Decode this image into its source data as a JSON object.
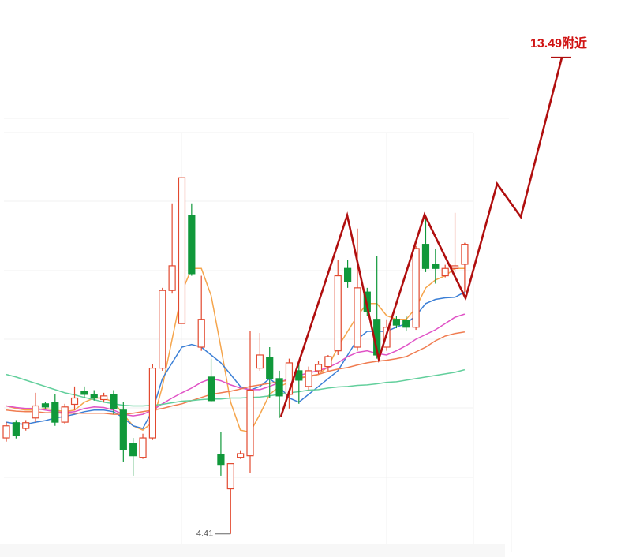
{
  "chart_data": {
    "type": "candlestick",
    "open": [
      6.24,
      6.53,
      6.42,
      6.62,
      6.89,
      6.92,
      6.54,
      6.88,
      7.13,
      7.07,
      6.97,
      7.07,
      6.77,
      6.14,
      5.87,
      6.24,
      7.57,
      9.05,
      8.42,
      10.48,
      7.97,
      7.4,
      5.93,
      5.27,
      5.87,
      5.9,
      7.57,
      7.78,
      7.37,
      7.07,
      7.52,
      7.22,
      7.52,
      7.6,
      7.9,
      9.47,
      7.97,
      9.02,
      8.5,
      7.97,
      8.5,
      8.48,
      8.35,
      9.93,
      9.55,
      9.33,
      9.47,
      9.55
    ],
    "high": [
      6.54,
      6.58,
      6.58,
      7.1,
      6.92,
      7.07,
      6.89,
      7.22,
      7.22,
      7.15,
      7.1,
      7.15,
      6.92,
      6.24,
      6.32,
      7.64,
      9.1,
      10.71,
      11.2,
      10.71,
      9.33,
      7.75,
      6.35,
      5.75,
      5.99,
      8.27,
      8.24,
      7.97,
      7.52,
      7.75,
      7.64,
      7.6,
      7.7,
      7.82,
      9.63,
      9.63,
      10.23,
      9.1,
      9.7,
      8.5,
      8.57,
      8.57,
      9.9,
      10.45,
      9.85,
      9.54,
      10.53,
      9.96
    ],
    "low": [
      6.17,
      6.23,
      6.38,
      6.54,
      6.8,
      6.47,
      6.51,
      6.77,
      7.0,
      6.95,
      6.92,
      6.69,
      5.79,
      5.52,
      5.84,
      6.2,
      7.52,
      8.99,
      8.42,
      9.33,
      7.9,
      6.92,
      5.52,
      4.41,
      5.84,
      5.57,
      7.52,
      7.0,
      6.62,
      6.8,
      6.89,
      7.15,
      7.46,
      7.52,
      7.82,
      9.1,
      7.9,
      8.57,
      7.75,
      7.9,
      8.33,
      8.27,
      8.3,
      9.4,
      9.18,
      9.3,
      9.4,
      9.02
    ],
    "close": [
      6.47,
      6.29,
      6.53,
      6.85,
      6.83,
      6.54,
      6.83,
      7.0,
      7.07,
      7.0,
      7.04,
      6.8,
      6.02,
      5.9,
      6.24,
      7.57,
      9.05,
      9.52,
      11.2,
      9.37,
      8.5,
      6.95,
      5.72,
      5.75,
      5.94,
      7.15,
      7.82,
      7.37,
      7.04,
      7.67,
      7.34,
      7.52,
      7.64,
      7.79,
      9.33,
      9.22,
      9.1,
      8.65,
      7.82,
      8.35,
      8.39,
      8.35,
      9.85,
      9.47,
      9.47,
      9.47,
      9.52,
      9.93
    ],
    "up_color": "#e2492f",
    "down_color": "#10983a",
    "series": [
      {
        "color": "#f5a54c",
        "values": [
          6.85,
          6.8,
          6.77,
          6.77,
          6.8,
          6.77,
          6.74,
          6.77,
          6.92,
          7.0,
          7.0,
          6.92,
          6.69,
          6.47,
          6.39,
          6.54,
          7.22,
          8.12,
          9.02,
          9.47,
          9.47,
          8.95,
          7.97,
          6.92,
          6.39,
          6.35,
          6.69,
          7.07,
          7.22,
          7.3,
          7.4,
          7.4,
          7.45,
          7.6,
          7.97,
          8.27,
          8.57,
          8.8,
          8.8,
          8.57,
          8.5,
          8.5,
          8.72,
          9.1,
          9.25,
          9.33,
          9.47,
          9.47
        ]
      },
      {
        "color": "#3b7fd6",
        "values": [
          6.54,
          6.51,
          6.5,
          6.54,
          6.57,
          6.62,
          6.65,
          6.69,
          6.74,
          6.77,
          6.77,
          6.74,
          6.62,
          6.47,
          6.42,
          6.77,
          7.37,
          7.67,
          7.97,
          8.02,
          7.97,
          7.82,
          7.67,
          7.45,
          7.22,
          7.15,
          7.22,
          7.37,
          7.22,
          7.0,
          6.92,
          7.07,
          7.22,
          7.37,
          7.52,
          7.82,
          8.12,
          8.27,
          8.27,
          8.27,
          8.35,
          8.42,
          8.57,
          8.8,
          8.88,
          8.91,
          8.92,
          9.02
        ]
      },
      {
        "color": "#e052c6",
        "values": [
          6.85,
          6.82,
          6.8,
          6.8,
          6.77,
          6.74,
          6.72,
          6.74,
          6.8,
          6.83,
          6.82,
          6.77,
          6.69,
          6.66,
          6.69,
          6.77,
          6.89,
          7.0,
          7.1,
          7.19,
          7.3,
          7.37,
          7.33,
          7.25,
          7.19,
          7.16,
          7.16,
          7.22,
          7.3,
          7.37,
          7.43,
          7.48,
          7.52,
          7.58,
          7.67,
          7.79,
          7.87,
          7.9,
          7.85,
          7.82,
          7.9,
          8.0,
          8.12,
          8.21,
          8.3,
          8.42,
          8.54,
          8.6
        ]
      },
      {
        "color": "#f07c50",
        "values": [
          6.77,
          6.75,
          6.74,
          6.74,
          6.72,
          6.72,
          6.71,
          6.71,
          6.71,
          6.71,
          6.71,
          6.69,
          6.69,
          6.71,
          6.74,
          6.77,
          6.8,
          6.85,
          6.89,
          6.95,
          7.01,
          7.07,
          7.1,
          7.13,
          7.17,
          7.22,
          7.25,
          7.28,
          7.31,
          7.34,
          7.37,
          7.42,
          7.45,
          7.51,
          7.55,
          7.58,
          7.63,
          7.67,
          7.7,
          7.72,
          7.75,
          7.79,
          7.88,
          7.97,
          8.09,
          8.18,
          8.23,
          8.26
        ]
      },
      {
        "color": "#62cf9c",
        "values": [
          7.45,
          7.4,
          7.34,
          7.28,
          7.22,
          7.16,
          7.1,
          7.06,
          7.01,
          6.97,
          6.92,
          6.89,
          6.86,
          6.85,
          6.85,
          6.86,
          6.88,
          6.91,
          6.94,
          6.95,
          6.97,
          6.98,
          6.98,
          7.0,
          7.0,
          7.01,
          7.02,
          7.04,
          7.07,
          7.1,
          7.12,
          7.15,
          7.16,
          7.19,
          7.21,
          7.22,
          7.24,
          7.25,
          7.27,
          7.3,
          7.31,
          7.34,
          7.37,
          7.4,
          7.43,
          7.46,
          7.49,
          7.54
        ]
      }
    ],
    "ylim": [
      4,
      14
    ],
    "annotations": [
      {
        "text": "13.49附近",
        "value": 13.49,
        "color": "#d01414"
      }
    ]
  }
}
